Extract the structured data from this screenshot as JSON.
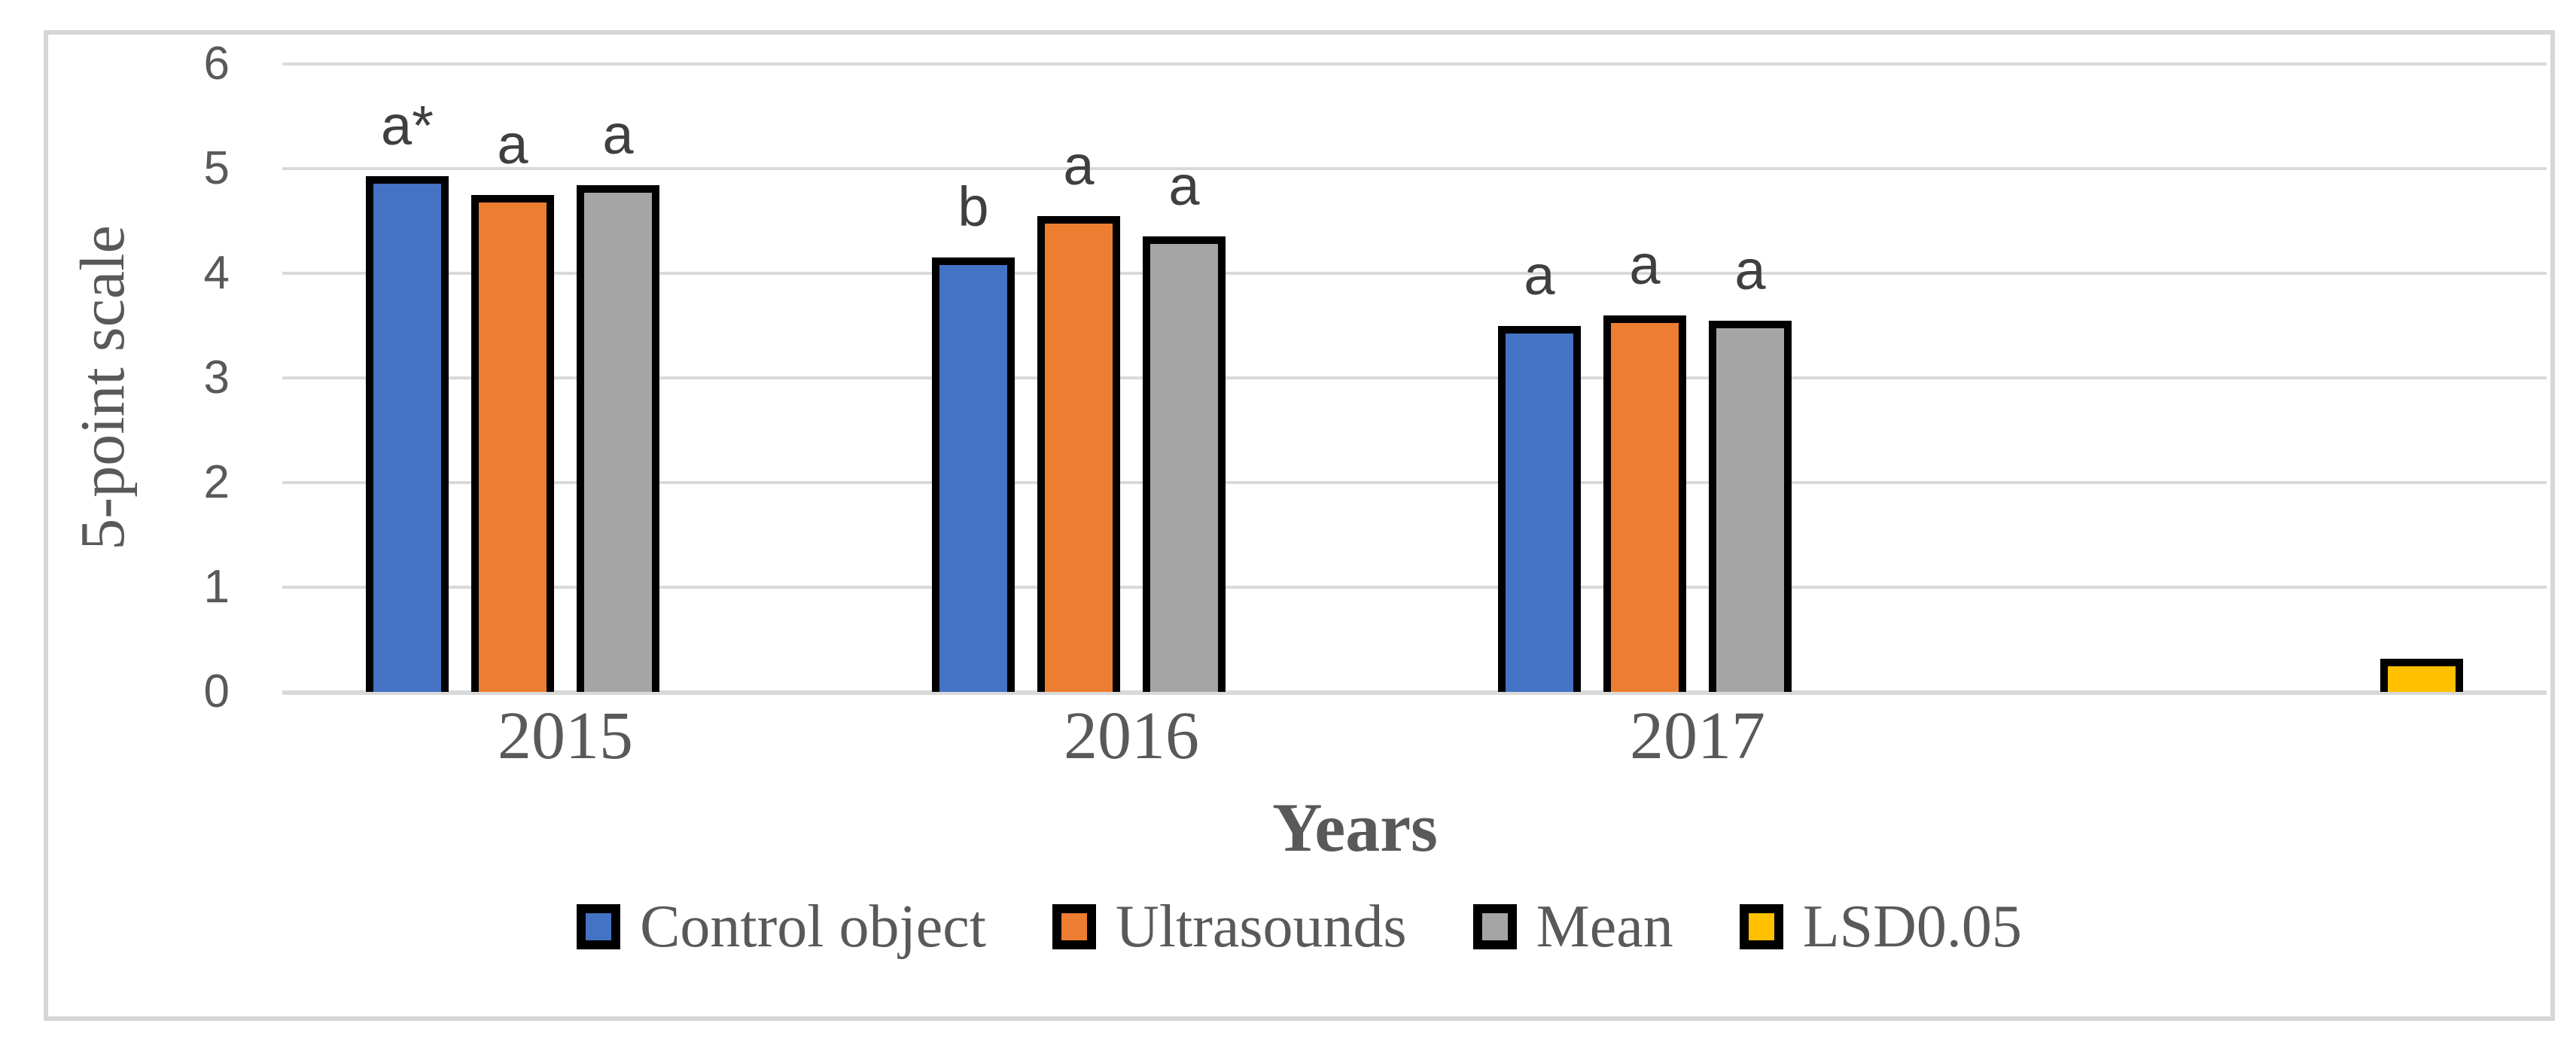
{
  "figure": {
    "background": "#FFFFFF",
    "frame_color": "#D6D6D6"
  },
  "colors": {
    "axis_text": "#595959",
    "annotation_text": "#3F3F3F",
    "gridline": "#D9D9D9",
    "bar_border": "#000000"
  },
  "chart_data": {
    "type": "bar",
    "title": "",
    "xlabel": "Years",
    "ylabel": "5-point scale",
    "ylim": [
      0,
      6
    ],
    "yticks": [
      0,
      1,
      2,
      3,
      4,
      5,
      6
    ],
    "grid": "horizontal",
    "legend_position": "bottom",
    "categories": [
      "2015",
      "2016",
      "2017",
      ""
    ],
    "series": [
      {
        "name": "Control object",
        "color": "#4472C4",
        "values": [
          4.93,
          4.15,
          3.5,
          null
        ],
        "annotations": [
          "a*",
          "b",
          "a",
          ""
        ]
      },
      {
        "name": "Ultrasounds",
        "color": "#ED7D31",
        "values": [
          4.75,
          4.55,
          3.6,
          null
        ],
        "annotations": [
          "a",
          "a",
          "a",
          ""
        ]
      },
      {
        "name": "Mean",
        "color": "#A5A5A5",
        "values": [
          4.84,
          4.35,
          3.55,
          null
        ],
        "annotations": [
          "a",
          "a",
          "a",
          ""
        ]
      },
      {
        "name": "LSD0.05",
        "color": "#FFC000",
        "values": [
          null,
          null,
          null,
          0.32
        ],
        "annotations": [
          "",
          "",
          "",
          ""
        ]
      }
    ]
  }
}
